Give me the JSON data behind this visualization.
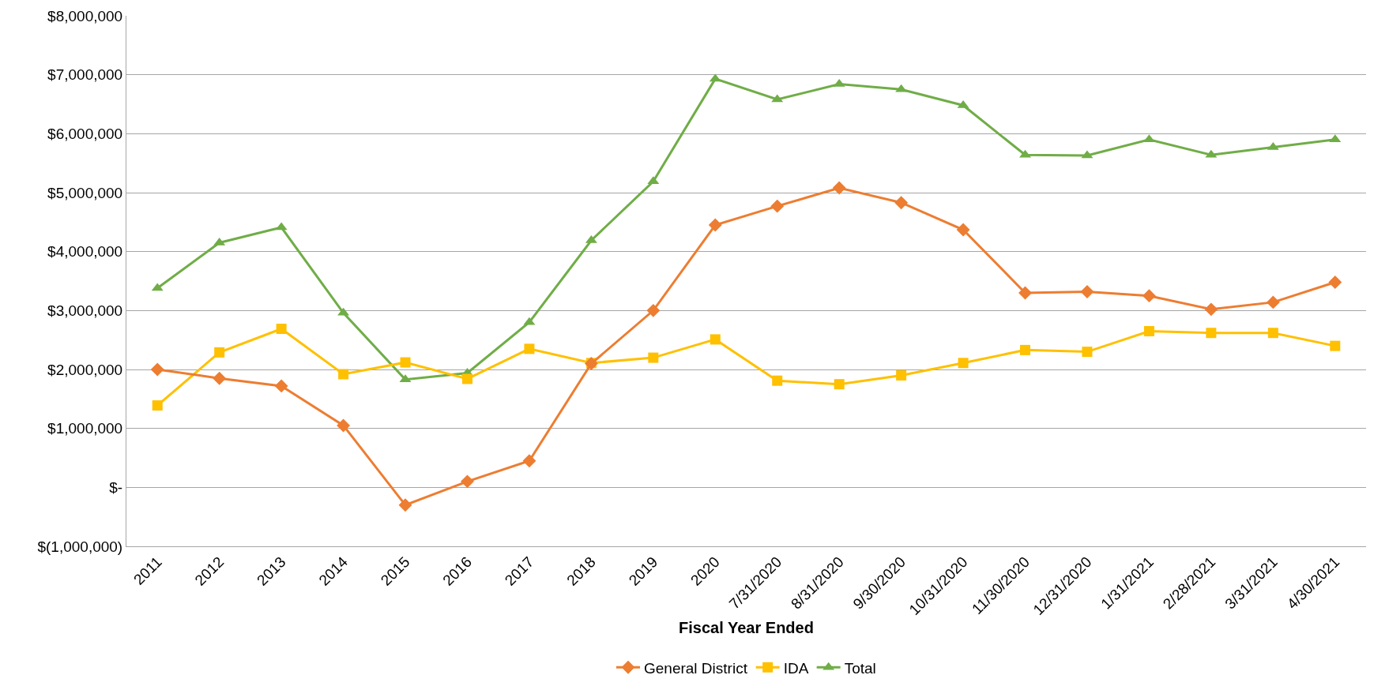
{
  "chart_data": {
    "type": "line",
    "xlabel": "Fiscal Year Ended",
    "categories": [
      "2011",
      "2012",
      "2013",
      "2014",
      "2015",
      "2016",
      "2017",
      "2018",
      "2019",
      "2020",
      "7/31/2020",
      "8/31/2020",
      "9/30/2020",
      "10/31/2020",
      "11/30/2020",
      "12/31/2020",
      "1/31/2021",
      "2/28/2021",
      "3/31/2021",
      "4/30/2021"
    ],
    "series": [
      {
        "name": "General District",
        "color": "#ed7d31",
        "marker": "diamond",
        "values": [
          2000000,
          1850000,
          1720000,
          1050000,
          -300000,
          100000,
          450000,
          2100000,
          3000000,
          4450000,
          4770000,
          5080000,
          4830000,
          4370000,
          3300000,
          3320000,
          3250000,
          3020000,
          3140000,
          3480000
        ]
      },
      {
        "name": "IDA",
        "color": "#ffc000",
        "marker": "square",
        "values": [
          1390000,
          2290000,
          2690000,
          1920000,
          2120000,
          1840000,
          2350000,
          2110000,
          2200000,
          2510000,
          1810000,
          1750000,
          1900000,
          2110000,
          2330000,
          2300000,
          2650000,
          2620000,
          2620000,
          2400000
        ]
      },
      {
        "name": "Total",
        "color": "#70ad47",
        "marker": "triangle",
        "values": [
          3380000,
          4150000,
          4410000,
          2960000,
          1830000,
          1940000,
          2800000,
          4190000,
          5190000,
          6930000,
          6580000,
          6840000,
          6750000,
          6480000,
          5640000,
          5630000,
          5900000,
          5640000,
          5770000,
          5900000
        ]
      }
    ],
    "ylim": [
      -1000000,
      8000000
    ],
    "yticks": [
      {
        "value": -1000000,
        "label": "$(1,000,000)"
      },
      {
        "value": 0,
        "label": "$-"
      },
      {
        "value": 1000000,
        "label": "$1,000,000"
      },
      {
        "value": 2000000,
        "label": "$2,000,000"
      },
      {
        "value": 3000000,
        "label": "$3,000,000"
      },
      {
        "value": 4000000,
        "label": "$4,000,000"
      },
      {
        "value": 5000000,
        "label": "$5,000,000"
      },
      {
        "value": 6000000,
        "label": "$6,000,000"
      },
      {
        "value": 7000000,
        "label": "$7,000,000"
      },
      {
        "value": 8000000,
        "label": "$8,000,000"
      }
    ],
    "grid": "y",
    "legend": "bottom",
    "line_style": "solid"
  }
}
